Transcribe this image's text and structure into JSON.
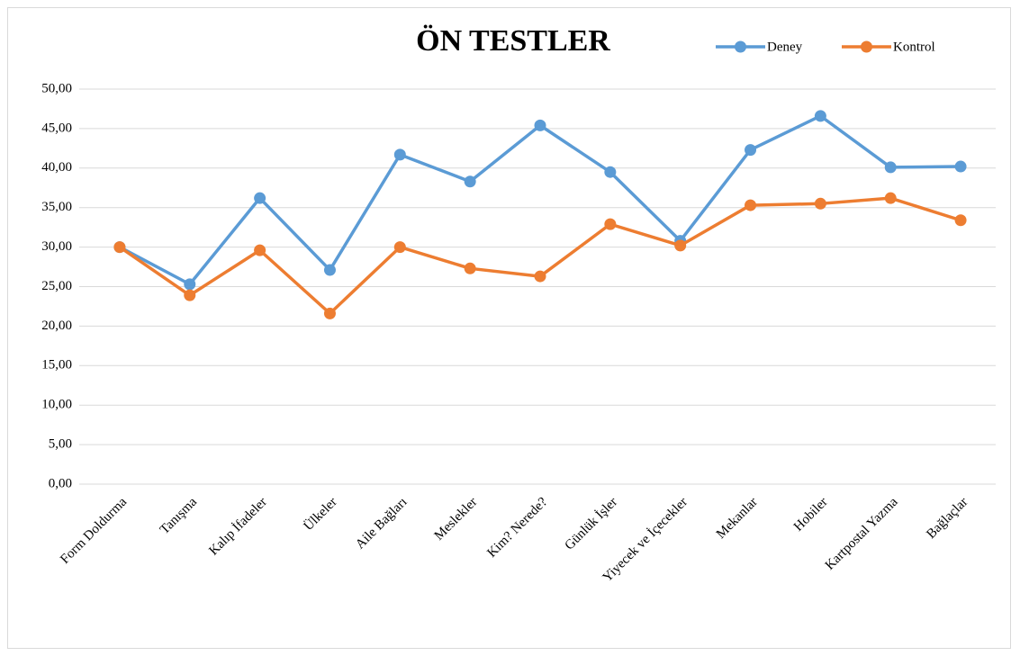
{
  "chart_data": {
    "type": "line",
    "title": "ÖN TESTLER",
    "categories": [
      "Form Doldurma",
      "Tanışma",
      "Kalıp İfadeler",
      "Ülkeler",
      "Aile Bağları",
      "Meslekler",
      "Kim? Nerede?",
      "Günlük İşler",
      "Yiyecek ve İçecekler",
      "Mekanlar",
      "Hobiler",
      "Kartpostal Yazma",
      "Bağlaçlar"
    ],
    "series": [
      {
        "name": "Deney",
        "color": "#5b9bd5",
        "values": [
          30.0,
          25.3,
          36.2,
          27.1,
          41.7,
          38.3,
          45.4,
          39.5,
          30.8,
          42.3,
          46.6,
          40.1,
          40.2
        ]
      },
      {
        "name": "Kontrol",
        "color": "#ed7d31",
        "values": [
          30.0,
          23.9,
          29.6,
          21.6,
          30.0,
          27.3,
          26.3,
          32.9,
          30.2,
          35.3,
          35.5,
          36.2,
          33.4
        ]
      }
    ],
    "ylim": [
      0,
      50
    ],
    "yticks": [
      {
        "value": 0,
        "label": "0,00"
      },
      {
        "value": 5,
        "label": "5,00"
      },
      {
        "value": 10,
        "label": "10,00"
      },
      {
        "value": 15,
        "label": "15,00"
      },
      {
        "value": 20,
        "label": "20,00"
      },
      {
        "value": 25,
        "label": "25,00"
      },
      {
        "value": 30,
        "label": "30,00"
      },
      {
        "value": 35,
        "label": "35,00"
      },
      {
        "value": 40,
        "label": "40,00"
      },
      {
        "value": 45,
        "label": "45,00"
      },
      {
        "value": 50,
        "label": "50,00"
      }
    ],
    "grid": true,
    "legend": "top-right"
  }
}
